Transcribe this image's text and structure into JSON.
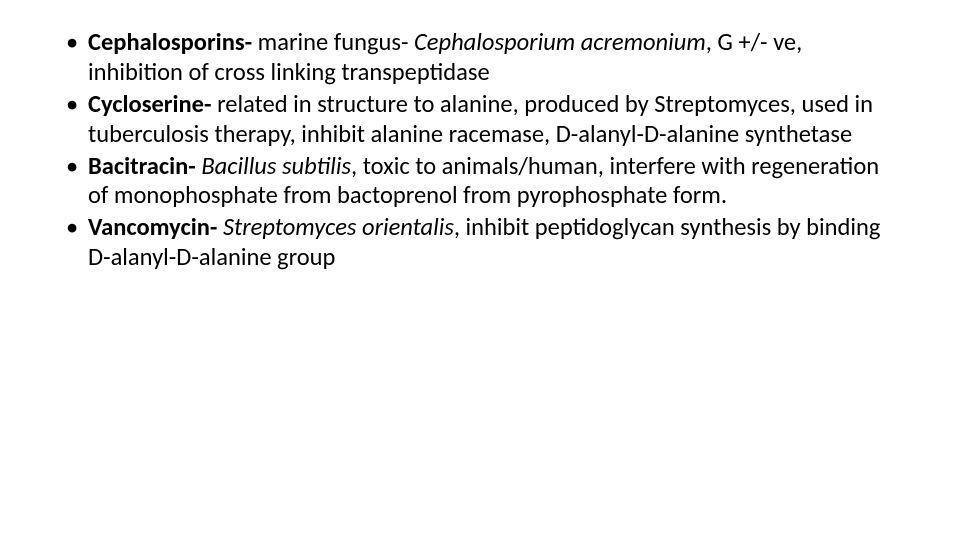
{
  "slide": {
    "background_color": "#ffffff",
    "text_color": "#000000",
    "font_family": "Calibri",
    "body_fontsize_pt": 18,
    "line_height": 1.22,
    "bullets": [
      {
        "term": "Cephalosporins-",
        "seg1_plain": " marine fungus- ",
        "seg2_italic": "Cephalosporium acremonium",
        "seg3_plain": ", G +/- ve, inhibition of cross linking transpeptidase"
      },
      {
        "term": "Cycloserine-",
        "seg1_plain": " related in structure to alanine, produced by Streptomyces, used in tuberculosis therapy, inhibit alanine racemase, D-alanyl-D-alanine synthetase",
        "seg2_italic": "",
        "seg3_plain": ""
      },
      {
        "term": "Bacitracin-",
        "seg1_plain": " ",
        "seg2_italic": "Bacillus subtilis",
        "seg3_plain": ", toxic to animals/human, interfere with regeneration of monophosphate from bactoprenol from pyrophosphate form."
      },
      {
        "term": "Vancomycin-",
        "seg1_plain": " ",
        "seg2_italic": "Streptomyces orientalis",
        "seg3_plain": ", inhibit peptidoglycan synthesis by binding D-alanyl-D-alanine group"
      }
    ]
  }
}
